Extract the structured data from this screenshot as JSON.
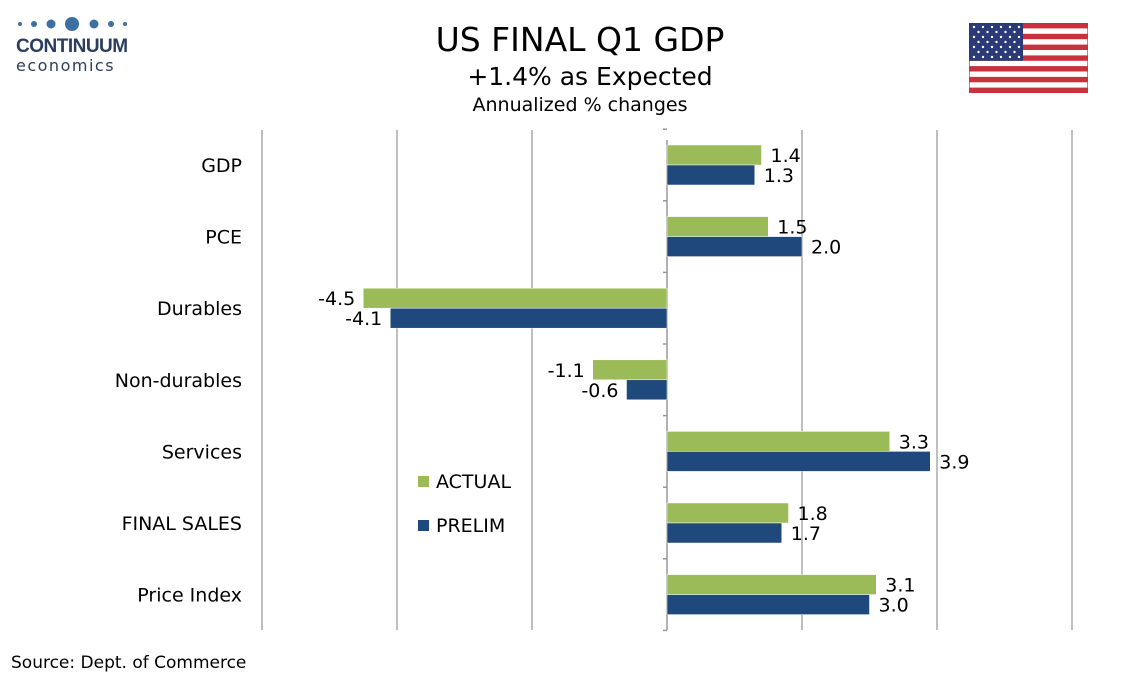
{
  "logo": {
    "name": "CONTINUUM",
    "sub": "economics"
  },
  "title": "US FINAL Q1 GDP",
  "subtitle": "+1.4% as Expected",
  "subtitle2": "Annualized % changes",
  "source": "Source: Dept. of Commerce",
  "colors": {
    "actual": "#9bbb59",
    "prelim": "#1f497d",
    "grid": "#bfbfbf",
    "logo": "#3d6fa3"
  },
  "chart_data": {
    "type": "bar",
    "orientation": "horizontal",
    "categories": [
      "GDP",
      "PCE",
      "Durables",
      "Non-durables",
      "Services",
      "FINAL SALES",
      "Price Index"
    ],
    "series": [
      {
        "name": "ACTUAL",
        "values": [
          1.4,
          1.5,
          -4.5,
          -1.1,
          3.3,
          1.8,
          3.1
        ],
        "labels": [
          "1.4",
          "1.5",
          "-4.5",
          "-1.1",
          "3.3",
          "1.8",
          "3.1"
        ]
      },
      {
        "name": "PRELIM",
        "values": [
          1.3,
          2.0,
          -4.1,
          -0.6,
          3.9,
          1.7,
          3.0
        ],
        "labels": [
          "1.3",
          "2.0",
          "-4.1",
          "-0.6",
          "3.9",
          "1.7",
          "3.0"
        ]
      }
    ],
    "xlim": [
      -6,
      6
    ],
    "grid": true,
    "legend": "middle-left"
  }
}
